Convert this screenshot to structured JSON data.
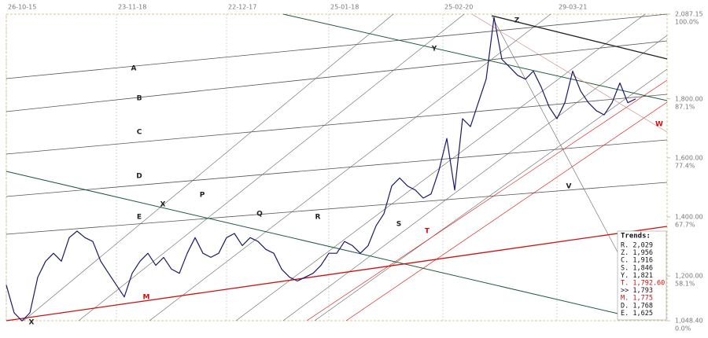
{
  "chart_data": {
    "type": "line",
    "x": [
      0,
      2,
      4,
      6,
      8,
      10,
      12,
      14,
      16,
      18,
      20,
      22,
      24,
      26,
      28,
      30,
      32,
      34,
      36,
      38,
      40,
      42,
      44,
      46,
      48,
      50,
      52,
      54,
      56,
      58,
      60,
      62,
      64,
      66,
      68,
      70,
      72,
      74,
      76,
      78,
      80,
      82,
      84,
      86,
      88,
      90,
      92,
      94,
      96,
      98,
      100,
      102,
      104,
      106,
      108,
      110,
      112,
      114,
      116,
      118,
      120,
      122,
      124,
      126,
      128,
      130,
      132,
      134,
      136,
      138,
      140,
      142,
      144,
      146,
      148,
      150,
      152,
      154,
      156,
      158,
      160
    ],
    "series": [
      {
        "color": "#1a1a66",
        "values": [
          1169,
          1075,
          1048,
          1075,
          1196,
          1250,
          1277,
          1250,
          1330,
          1352,
          1330,
          1317,
          1250,
          1209,
          1169,
          1129,
          1209,
          1250,
          1277,
          1236,
          1263,
          1223,
          1209,
          1277,
          1330,
          1277,
          1263,
          1277,
          1330,
          1344,
          1303,
          1330,
          1317,
          1290,
          1277,
          1223,
          1196,
          1183,
          1196,
          1209,
          1236,
          1277,
          1277,
          1317,
          1303,
          1277,
          1303,
          1370,
          1411,
          1505,
          1532,
          1505,
          1491,
          1464,
          1478,
          1558,
          1666,
          1491,
          1733,
          1706,
          1787,
          1867,
          2076,
          1934,
          1907,
          1880,
          1867,
          1894,
          1840,
          1773,
          1733,
          1787,
          1894,
          1827,
          1787,
          1760,
          1746,
          1787,
          1854,
          1787,
          1800
        ]
      }
    ],
    "xlim": [
      0,
      168
    ],
    "xticks": [
      {
        "value": 0,
        "label": "26-10-15"
      },
      {
        "value": 28,
        "label": "23-11-18"
      },
      {
        "value": 56,
        "label": "22-12-17"
      },
      {
        "value": 82,
        "label": "25-01-18"
      },
      {
        "value": 111,
        "label": "25-02-20"
      },
      {
        "value": 140,
        "label": "29-03-21"
      }
    ],
    "ylim": [
      1048.4,
      2087.15
    ],
    "yticks": [
      {
        "value": 2087.15,
        "label": "2,087.15"
      },
      {
        "value": 1800,
        "label": "1,800.00"
      },
      {
        "value": 1600,
        "label": "1,600.00"
      },
      {
        "value": 1400,
        "label": "1,400.00"
      },
      {
        "value": 1200,
        "label": "1,200.00"
      },
      {
        "value": 1048.4,
        "label": "1,048.40"
      }
    ],
    "ytick_percent_labels": [
      "100.0%",
      "87.1%",
      "77.4%",
      "67.7%",
      "58.1%",
      "0.0%"
    ],
    "grid": true,
    "annotations": [
      {
        "text": "A",
        "color": "#222"
      },
      {
        "text": "B",
        "color": "#222"
      },
      {
        "text": "C",
        "color": "#222"
      },
      {
        "text": "D",
        "color": "#222"
      },
      {
        "text": "E",
        "color": "#222"
      },
      {
        "text": "X",
        "color": "#222"
      },
      {
        "text": "P",
        "color": "#222"
      },
      {
        "text": "Q",
        "color": "#222"
      },
      {
        "text": "R",
        "color": "#222"
      },
      {
        "text": "S",
        "color": "#222"
      },
      {
        "text": "T",
        "color": "#d01010"
      },
      {
        "text": "Y",
        "color": "#222"
      },
      {
        "text": "Z",
        "color": "#222"
      },
      {
        "text": "V",
        "color": "#222"
      },
      {
        "text": "W",
        "color": "#d01010"
      },
      {
        "text": "M",
        "color": "#d01010"
      },
      {
        "text": "X",
        "color": "#222"
      }
    ],
    "trends": {
      "title": "Trends:",
      "entries": [
        {
          "label": "R. 2,029",
          "color": "#111"
        },
        {
          "label": "Z. 1,956",
          "color": "#111"
        },
        {
          "label": "C. 1,916",
          "color": "#111"
        },
        {
          "label": "S. 1,846",
          "color": "#111"
        },
        {
          "label": "Y. 1,821",
          "color": "#111"
        },
        {
          "label": "T. 1,792.60",
          "color": "#d01010"
        },
        {
          "label": ">> 1,793",
          "color": "#111"
        },
        {
          "label": "M. 1,775",
          "color": "#d01010"
        },
        {
          "label": "D. 1,768",
          "color": "#111"
        },
        {
          "label": "E. 1,625",
          "color": "#111"
        }
      ]
    }
  }
}
